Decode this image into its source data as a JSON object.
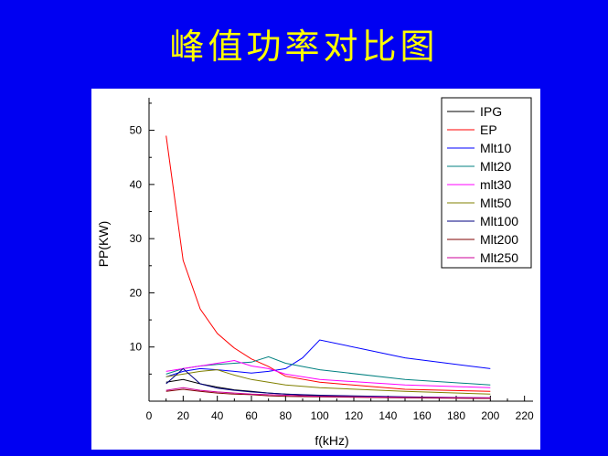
{
  "slide": {
    "title": "峰值功率对比图"
  },
  "chart_data": {
    "type": "line",
    "xlabel": "f(kHz)",
    "ylabel": "PP(KW)",
    "xlim": [
      0,
      225
    ],
    "ylim": [
      0,
      56
    ],
    "xticks": [
      0,
      20,
      40,
      60,
      80,
      100,
      120,
      140,
      160,
      180,
      200,
      220
    ],
    "yticks": [
      10,
      20,
      30,
      40,
      50
    ],
    "legend_position": "top-right",
    "grid": false,
    "series": [
      {
        "name": "IPG",
        "color": "#000000",
        "x": [
          10,
          20,
          30,
          40,
          50,
          60,
          70,
          80,
          100,
          150,
          200
        ],
        "y": [
          3.5,
          4.0,
          3.2,
          2.6,
          2.1,
          1.8,
          1.5,
          1.3,
          1.0,
          0.7,
          0.5
        ]
      },
      {
        "name": "EP",
        "color": "#ff0000",
        "x": [
          10,
          20,
          30,
          40,
          50,
          60,
          70,
          80,
          100,
          150,
          200
        ],
        "y": [
          49,
          26,
          17,
          12.5,
          9.8,
          7.8,
          6.4,
          4.6,
          3.5,
          2.2,
          1.8
        ]
      },
      {
        "name": "Mlt10",
        "color": "#0000ff",
        "x": [
          10,
          20,
          30,
          40,
          50,
          60,
          70,
          80,
          90,
          100,
          150,
          200
        ],
        "y": [
          4.5,
          5.5,
          6.0,
          5.8,
          5.5,
          5.2,
          5.5,
          6.0,
          8.0,
          11.3,
          8.0,
          6.0
        ]
      },
      {
        "name": "Mlt20",
        "color": "#008080",
        "x": [
          10,
          20,
          30,
          40,
          50,
          60,
          70,
          80,
          100,
          150,
          200
        ],
        "y": [
          5.0,
          6.0,
          6.5,
          6.8,
          7.0,
          7.2,
          8.2,
          7.0,
          5.8,
          4.0,
          3.0
        ]
      },
      {
        "name": "mlt30",
        "color": "#ff00ff",
        "x": [
          10,
          20,
          30,
          40,
          50,
          60,
          70,
          80,
          100,
          150,
          200
        ],
        "y": [
          5.5,
          6.0,
          6.5,
          7.0,
          7.5,
          6.5,
          6.0,
          5.0,
          4.0,
          3.0,
          2.5
        ]
      },
      {
        "name": "Mlt50",
        "color": "#808000",
        "x": [
          10,
          20,
          30,
          40,
          50,
          60,
          70,
          80,
          100,
          150,
          200
        ],
        "y": [
          4.5,
          5.0,
          5.5,
          5.8,
          4.8,
          4.0,
          3.5,
          3.0,
          2.5,
          1.8,
          1.3
        ]
      },
      {
        "name": "Mlt100",
        "color": "#000080",
        "x": [
          10,
          20,
          30,
          40,
          50,
          60,
          70,
          80,
          100,
          150,
          200
        ],
        "y": [
          3.2,
          6.0,
          3.2,
          2.4,
          2.0,
          1.7,
          1.5,
          1.3,
          1.1,
          0.8,
          0.6
        ]
      },
      {
        "name": "Mlt200",
        "color": "#800000",
        "x": [
          10,
          20,
          30,
          40,
          50,
          60,
          70,
          80,
          100,
          150,
          200
        ],
        "y": [
          1.8,
          2.2,
          1.8,
          1.5,
          1.3,
          1.2,
          1.0,
          0.9,
          0.8,
          0.6,
          0.5
        ]
      },
      {
        "name": "Mlt250",
        "color": "#cc0099",
        "x": [
          10,
          20,
          30,
          40,
          50,
          60,
          70,
          80,
          100,
          150,
          200
        ],
        "y": [
          2.0,
          2.5,
          2.0,
          1.7,
          1.5,
          1.3,
          1.2,
          1.1,
          0.9,
          0.7,
          0.6
        ]
      }
    ]
  }
}
